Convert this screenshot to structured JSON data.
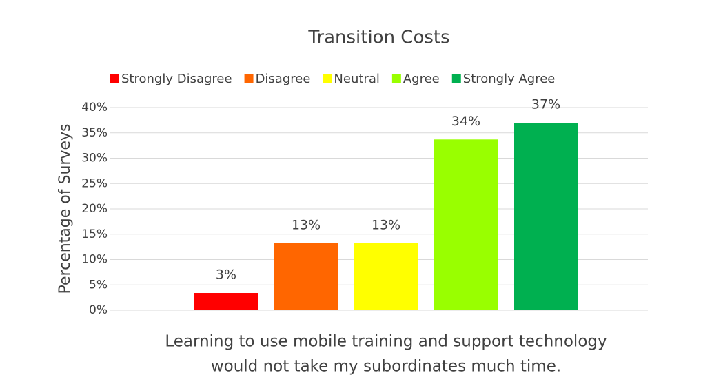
{
  "chart_data": {
    "type": "bar",
    "title": "Transition Costs",
    "ylabel": "Percentage of Surveys",
    "xlabel": [
      "Learning to use mobile training and support technology",
      "would not take my subordinates much time."
    ],
    "series": [
      {
        "name": "Strongly Disagree",
        "color": "#ff0000",
        "values": [
          3.4
        ],
        "value_labels": [
          "3%"
        ]
      },
      {
        "name": "Disagree",
        "color": "#ff6600",
        "values": [
          13.2
        ],
        "value_labels": [
          "13%"
        ]
      },
      {
        "name": "Neutral",
        "color": "#ffff00",
        "values": [
          13.2
        ],
        "value_labels": [
          "13%"
        ]
      },
      {
        "name": "Agree",
        "color": "#99ff00",
        "values": [
          33.7
        ],
        "value_labels": [
          "34%"
        ]
      },
      {
        "name": "Strongly Agree",
        "color": "#00b050",
        "values": [
          37.0
        ],
        "value_labels": [
          "37%"
        ]
      }
    ],
    "ylim": [
      0,
      40
    ],
    "yticks": [
      {
        "value": 0,
        "label": "0%"
      },
      {
        "value": 5,
        "label": "5%"
      },
      {
        "value": 10,
        "label": "10%"
      },
      {
        "value": 15,
        "label": "15%"
      },
      {
        "value": 20,
        "label": "20%"
      },
      {
        "value": 25,
        "label": "25%"
      },
      {
        "value": 30,
        "label": "30%"
      },
      {
        "value": 35,
        "label": "35%"
      },
      {
        "value": 40,
        "label": "40%"
      }
    ],
    "grid": true,
    "legend": "top"
  }
}
